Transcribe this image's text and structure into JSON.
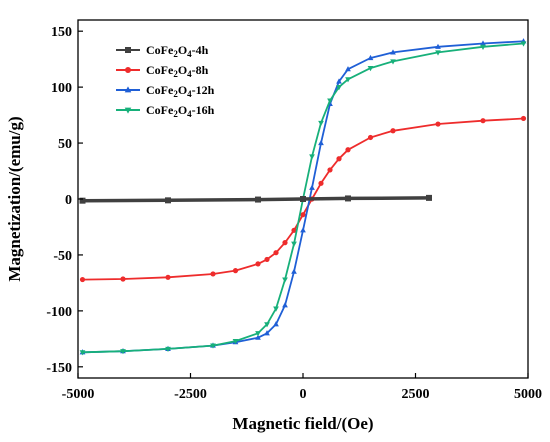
{
  "chart_data": {
    "type": "line",
    "title": "",
    "xlabel": "Magnetic field/(Oe)",
    "ylabel": "Magnetization/(emu/g)",
    "xlim": [
      -5000,
      5000
    ],
    "ylim": [
      -160,
      160
    ],
    "xticks": [
      -5000,
      -2500,
      0,
      2500,
      5000
    ],
    "xtick_labels": [
      "-5000",
      "-2500",
      "0",
      "2500",
      "5000"
    ],
    "yticks": [
      -150,
      -100,
      -50,
      0,
      50,
      100,
      150
    ],
    "ytick_labels": [
      "-150",
      "-100",
      "-50",
      "0",
      "50",
      "100",
      "150"
    ],
    "grid": false,
    "legend_position": "top-left",
    "series": [
      {
        "name": "CoFe2O4-4h",
        "name_base": "CoFe",
        "name_sub1": "2",
        "name_mid": "O",
        "name_sub2": "4",
        "name_suffix": "-4h",
        "color": "#404040",
        "marker": "square",
        "x": [
          -4900,
          -3000,
          -1000,
          0,
          1000,
          2800
        ],
        "y": [
          -1.5,
          -1.2,
          -0.5,
          0,
          0.5,
          1
        ]
      },
      {
        "name": "CoFe2O4-8h",
        "name_base": "CoFe",
        "name_sub1": "2",
        "name_mid": "O",
        "name_sub2": "4",
        "name_suffix": "-8h",
        "color": "#ee2c2c",
        "marker": "circle",
        "x": [
          -4900,
          -4000,
          -3000,
          -2000,
          -1500,
          -1000,
          -800,
          -600,
          -400,
          -200,
          0,
          200,
          400,
          600,
          800,
          1000,
          1500,
          2000,
          3000,
          4000,
          4900
        ],
        "y": [
          -72,
          -71.5,
          -70,
          -67,
          -64,
          -58,
          -54,
          -48,
          -39,
          -28,
          -14,
          0,
          14,
          26,
          36,
          44,
          55,
          61,
          67,
          70,
          72
        ]
      },
      {
        "name": "CoFe2O4-12h",
        "name_base": "CoFe",
        "name_sub1": "2",
        "name_mid": "O",
        "name_sub2": "4",
        "name_suffix": "-12h",
        "color": "#1f5fd6",
        "marker": "triangle-up",
        "x": [
          -4900,
          -4000,
          -3000,
          -2000,
          -1500,
          -1000,
          -800,
          -600,
          -400,
          -200,
          0,
          200,
          400,
          600,
          800,
          1000,
          1500,
          2000,
          3000,
          4000,
          4900
        ],
        "y": [
          -137,
          -136,
          -134,
          -131,
          -128,
          -124,
          -120,
          -112,
          -95,
          -65,
          -28,
          10,
          50,
          85,
          105,
          116,
          126,
          131,
          136,
          139,
          141
        ]
      },
      {
        "name": "CoFe2O4-16h",
        "name_base": "CoFe",
        "name_sub1": "2",
        "name_mid": "O",
        "name_sub2": "4",
        "name_suffix": "-16h",
        "color": "#17b07a",
        "marker": "triangle-down",
        "x": [
          -4900,
          -4000,
          -3000,
          -2000,
          -1500,
          -1000,
          -800,
          -600,
          -400,
          -200,
          0,
          200,
          400,
          600,
          800,
          1000,
          1500,
          2000,
          3000,
          4000,
          4900
        ],
        "y": [
          -137,
          -136,
          -134,
          -131,
          -127,
          -120,
          -112,
          -98,
          -72,
          -40,
          0,
          38,
          68,
          88,
          100,
          107,
          117,
          123,
          131,
          136,
          139
        ]
      }
    ]
  }
}
